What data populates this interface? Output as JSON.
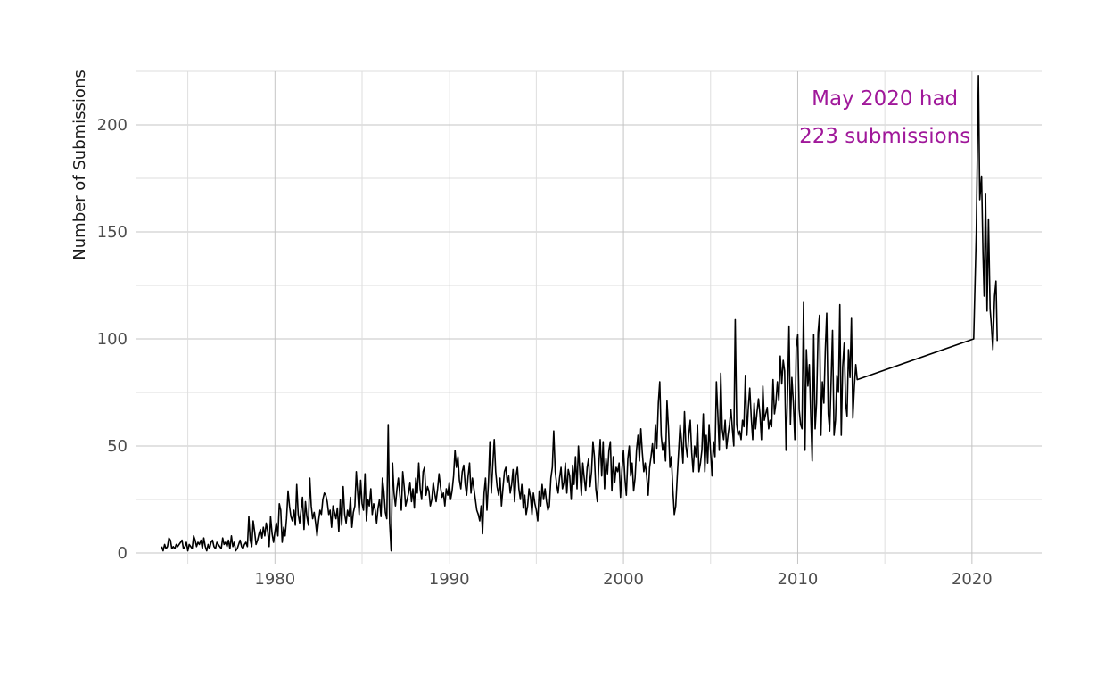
{
  "chart_data": {
    "type": "line",
    "title": "",
    "xlabel": "",
    "ylabel": "Number of Submissions",
    "xlim": [
      1972,
      2024
    ],
    "ylim": [
      -5,
      225
    ],
    "x_ticks": [
      1980,
      1990,
      2000,
      2010,
      2020
    ],
    "y_ticks": [
      0,
      50,
      100,
      150,
      200
    ],
    "grid": true,
    "legend": "none",
    "line_color": "#000000",
    "annotation": {
      "lines": [
        "May 2020 had",
        "223 submissions"
      ],
      "x": 2015.0,
      "y": 205,
      "color": "#a0189a"
    },
    "series": [
      {
        "x_start_year": 1973.5,
        "x_step_months": 1,
        "y": [
          3,
          1,
          4,
          2,
          3,
          7,
          6,
          2,
          3,
          2,
          4,
          3,
          4,
          5,
          6,
          2,
          3,
          5,
          1,
          4,
          3,
          2,
          8,
          6,
          3,
          5,
          4,
          6,
          2,
          7,
          3,
          1,
          4,
          2,
          5,
          6,
          3,
          2,
          5,
          4,
          3,
          2,
          7,
          4,
          5,
          3,
          6,
          2,
          8,
          3,
          5,
          1,
          2,
          4,
          6,
          3,
          2,
          4,
          5,
          3,
          17,
          6,
          3,
          15,
          10,
          4,
          6,
          9,
          11,
          7,
          12,
          8,
          14,
          10,
          3,
          17,
          9,
          5,
          10,
          14,
          8,
          23,
          20,
          5,
          12,
          8,
          16,
          29,
          22,
          17,
          15,
          20,
          13,
          32,
          18,
          14,
          20,
          26,
          11,
          24,
          17,
          13,
          35,
          22,
          16,
          19,
          14,
          8,
          15,
          20,
          18,
          25,
          28,
          27,
          24,
          18,
          20,
          12,
          22,
          19,
          16,
          21,
          10,
          25,
          13,
          31,
          18,
          14,
          20,
          17,
          26,
          12,
          19,
          22,
          38,
          28,
          18,
          34,
          23,
          20,
          37,
          15,
          25,
          22,
          30,
          18,
          23,
          20,
          14,
          21,
          25,
          17,
          35,
          29,
          19,
          16,
          60,
          14,
          1,
          42,
          28,
          22,
          30,
          35,
          27,
          20,
          38,
          31,
          22,
          25,
          28,
          33,
          24,
          30,
          21,
          35,
          28,
          42,
          30,
          25,
          38,
          40,
          27,
          31,
          29,
          22,
          25,
          33,
          28,
          24,
          30,
          37,
          31,
          26,
          28,
          22,
          30,
          27,
          33,
          25,
          29,
          36,
          48,
          40,
          45,
          34,
          30,
          38,
          41,
          32,
          27,
          36,
          42,
          28,
          35,
          30,
          25,
          20,
          18,
          15,
          22,
          9,
          28,
          35,
          20,
          33,
          52,
          28,
          41,
          53,
          38,
          31,
          27,
          35,
          22,
          30,
          38,
          40,
          33,
          36,
          28,
          32,
          39,
          24,
          36,
          40,
          30,
          25,
          32,
          21,
          27,
          18,
          22,
          30,
          26,
          18,
          28,
          23,
          20,
          15,
          29,
          22,
          32,
          25,
          30,
          24,
          20,
          22,
          35,
          40,
          57,
          38,
          32,
          28,
          35,
          40,
          30,
          33,
          42,
          28,
          39,
          36,
          25,
          41,
          32,
          45,
          30,
          50,
          38,
          27,
          42,
          35,
          29,
          40,
          44,
          31,
          38,
          52,
          45,
          30,
          24,
          41,
          53,
          36,
          52,
          30,
          44,
          37,
          48,
          52,
          29,
          45,
          33,
          40,
          38,
          42,
          26,
          39,
          48,
          35,
          27,
          44,
          50,
          36,
          42,
          29,
          35,
          48,
          55,
          43,
          58,
          47,
          38,
          42,
          36,
          27,
          40,
          45,
          51,
          42,
          60,
          49,
          70,
          80,
          55,
          48,
          52,
          43,
          71,
          58,
          40,
          45,
          30,
          18,
          22,
          35,
          47,
          60,
          52,
          42,
          66,
          50,
          45,
          55,
          62,
          47,
          38,
          50,
          45,
          60,
          38,
          42,
          48,
          65,
          38,
          55,
          42,
          60,
          47,
          36,
          52,
          45,
          80,
          65,
          48,
          84,
          58,
          53,
          62,
          49,
          55,
          60,
          67,
          58,
          50,
          109,
          60,
          55,
          57,
          53,
          62,
          59,
          83,
          55,
          68,
          77,
          63,
          53,
          70,
          58,
          66,
          72,
          65,
          53,
          78,
          62,
          65,
          68,
          58,
          62,
          59,
          81,
          65,
          70,
          80,
          71,
          92,
          79,
          90,
          85,
          48,
          75,
          106,
          60,
          82,
          70,
          53,
          96,
          102,
          67,
          60,
          58,
          117,
          48,
          95,
          78,
          88,
          64,
          43,
          102,
          58,
          70,
          103,
          111,
          55,
          80,
          70,
          95,
          112,
          65,
          57,
          80,
          104,
          55,
          62,
          83,
          75,
          116,
          55,
          87,
          98,
          70,
          64,
          95,
          82,
          110,
          63,
          78,
          88,
          81
        ]
      }
    ]
  }
}
